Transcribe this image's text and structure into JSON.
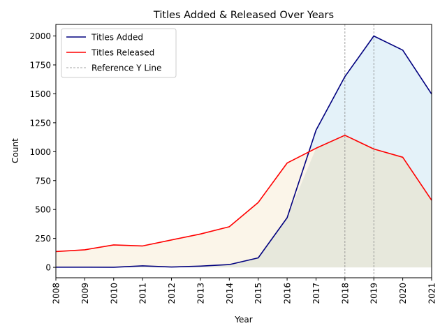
{
  "chart_data": {
    "type": "line",
    "title": "Titles Added & Released Over Years",
    "xlabel": "Year",
    "ylabel": "Count",
    "x": [
      2008,
      2009,
      2010,
      2011,
      2012,
      2013,
      2014,
      2015,
      2016,
      2017,
      2018,
      2019,
      2020,
      2021
    ],
    "xlim": [
      2008,
      2021
    ],
    "ylim": [
      -90,
      2100
    ],
    "yticks": [
      0,
      250,
      500,
      750,
      1000,
      1250,
      1500,
      1750,
      2000
    ],
    "grid": false,
    "legend_position": "top-left",
    "series": [
      {
        "name": "Titles Added",
        "color": "#00007f",
        "fill_color": "#e4f2f9",
        "values": [
          2,
          2,
          1,
          13,
          3,
          11,
          24,
          82,
          429,
          1186,
          1649,
          2000,
          1878,
          1498
        ]
      },
      {
        "name": "Titles Released",
        "color": "#ff0000",
        "fill_color": "#fbf5e9",
        "values": [
          137,
          152,
          194,
          185,
          237,
          288,
          351,
          561,
          902,
          1030,
          1142,
          1023,
          952,
          580
        ]
      }
    ],
    "overlap_fill_color": "#e7e8dc",
    "reference_lines": {
      "name": "Reference Y Line",
      "color": "#888888",
      "style": "dashed",
      "x": [
        2018,
        2019
      ]
    }
  }
}
